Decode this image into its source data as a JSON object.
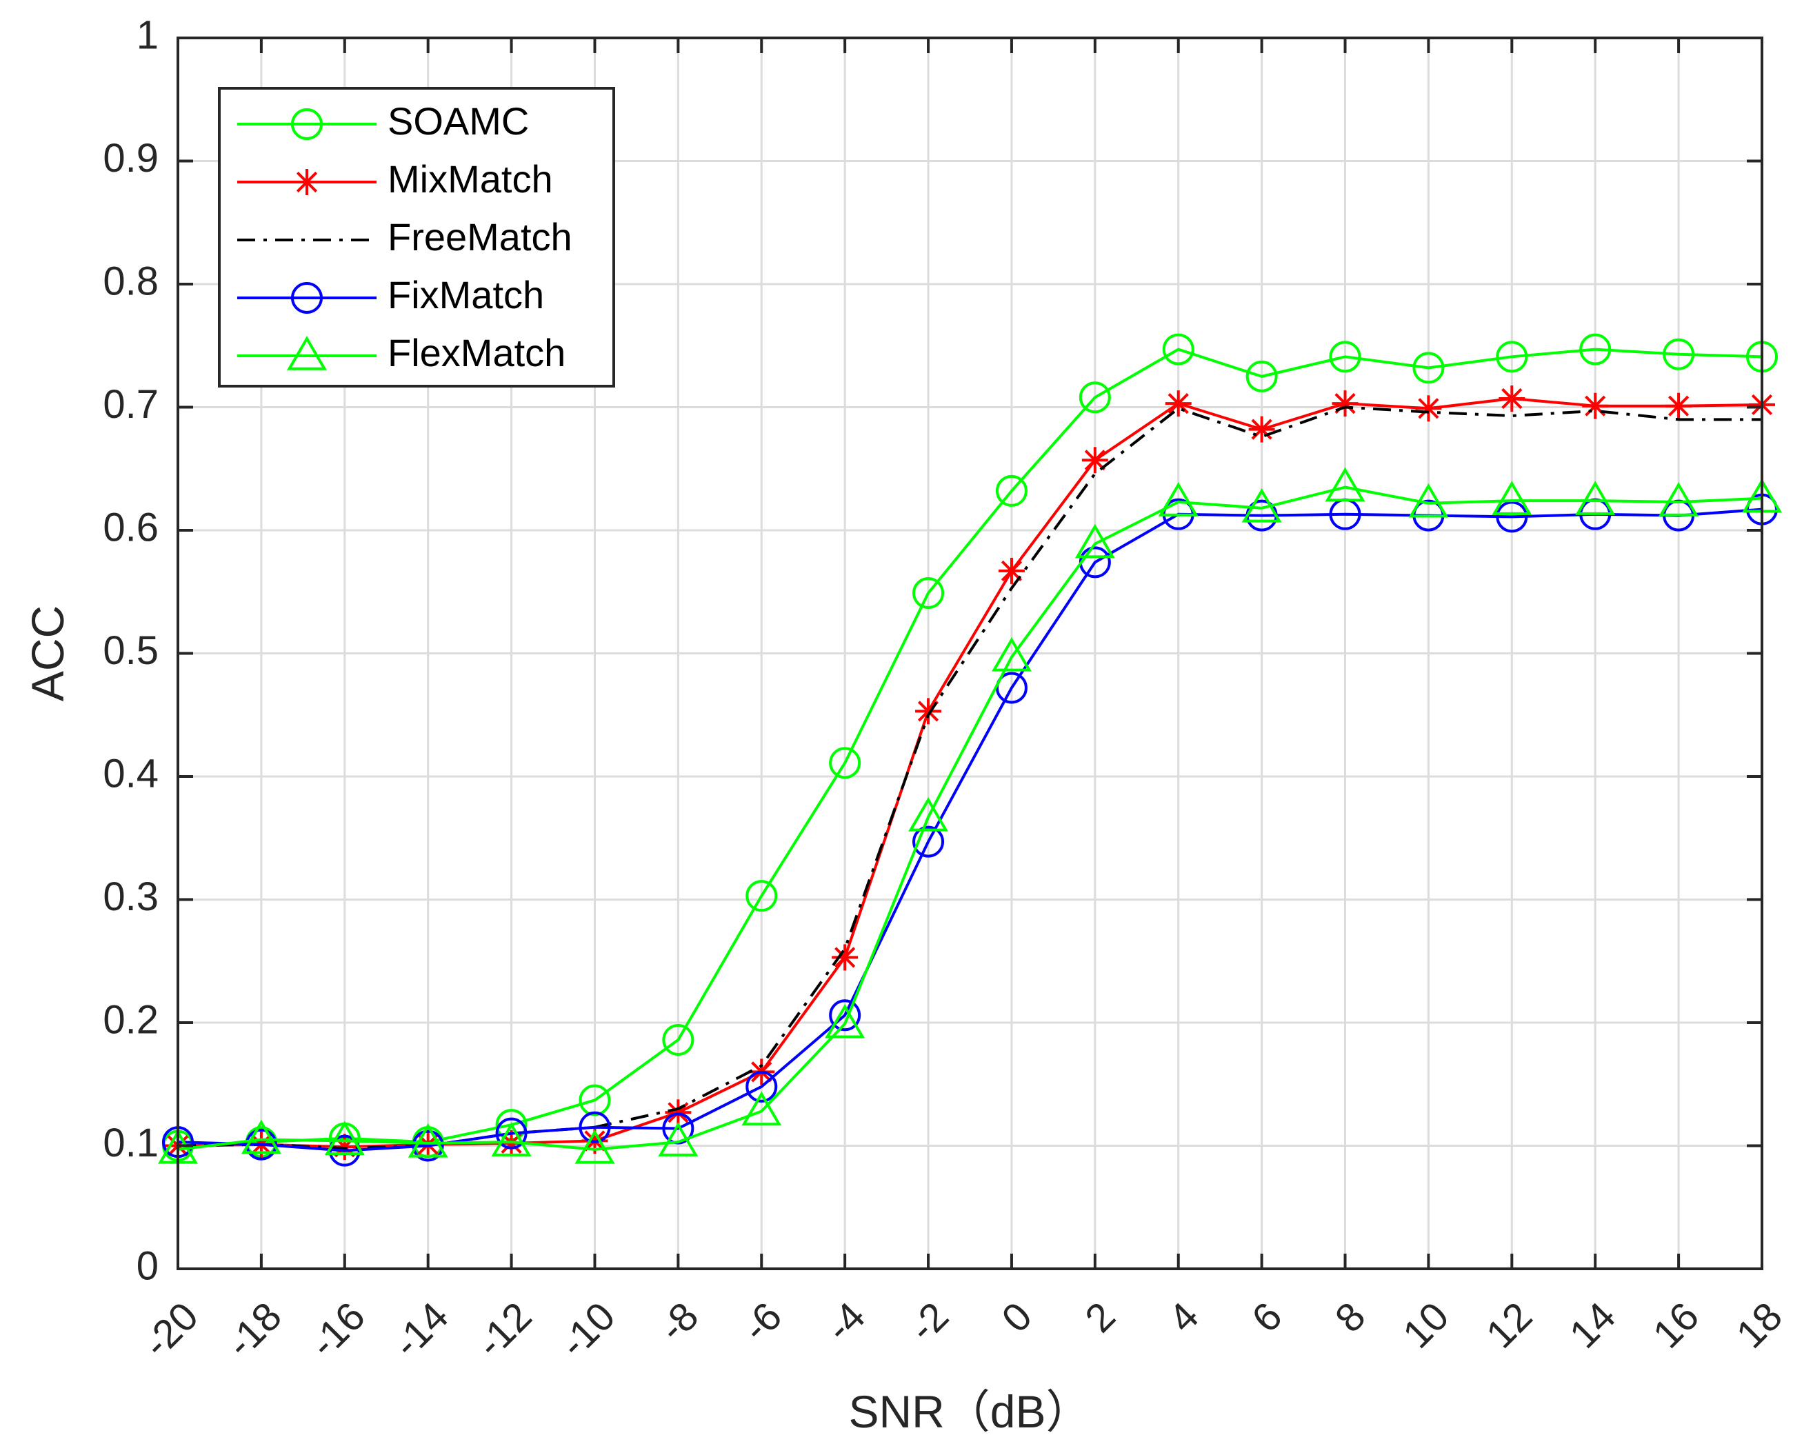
{
  "chart_data": {
    "type": "line",
    "title": "",
    "xlabel": "SNR（dB）",
    "ylabel": "ACC",
    "x": [
      -20,
      -18,
      -16,
      -14,
      -12,
      -10,
      -8,
      -6,
      -4,
      -2,
      0,
      2,
      4,
      6,
      8,
      10,
      12,
      14,
      16,
      18
    ],
    "x_tick_labels": [
      "-20",
      "-18",
      "-16",
      "-14",
      "-12",
      "-10",
      "-8",
      "-6",
      "-4",
      "-2",
      "0",
      "2",
      "4",
      "6",
      "8",
      "10",
      "12",
      "14",
      "16",
      "18"
    ],
    "xlim": [
      -20,
      18
    ],
    "ylim": [
      0,
      1
    ],
    "y_ticks": [
      0,
      0.1,
      0.2,
      0.3,
      0.4,
      0.5,
      0.6,
      0.7,
      0.8,
      0.9,
      1
    ],
    "y_tick_labels": [
      "0",
      "0.1",
      "0.2",
      "0.3",
      "0.4",
      "0.5",
      "0.6",
      "0.7",
      "0.8",
      "0.9",
      "1"
    ],
    "grid": true,
    "legend_position": "top-left",
    "series": [
      {
        "name": "SOAMC",
        "color": "#00ff00",
        "line_style": "solid",
        "marker": "circle",
        "values": [
          0.1,
          0.103,
          0.106,
          0.103,
          0.117,
          0.137,
          0.186,
          0.303,
          0.411,
          0.549,
          0.632,
          0.708,
          0.747,
          0.725,
          0.741,
          0.732,
          0.741,
          0.747,
          0.743,
          0.741
        ]
      },
      {
        "name": "MixMatch",
        "color": "#ff0000",
        "line_style": "solid",
        "marker": "asterisk",
        "values": [
          0.1,
          0.101,
          0.099,
          0.101,
          0.102,
          0.104,
          0.127,
          0.16,
          0.253,
          0.453,
          0.567,
          0.657,
          0.703,
          0.682,
          0.703,
          0.699,
          0.707,
          0.701,
          0.701,
          0.702
        ]
      },
      {
        "name": "FreeMatch",
        "color": "#000000",
        "line_style": "dashdot",
        "marker": "none",
        "values": [
          0.1,
          0.101,
          0.098,
          0.1,
          0.11,
          0.115,
          0.13,
          0.165,
          0.26,
          0.45,
          0.553,
          0.646,
          0.699,
          0.676,
          0.7,
          0.696,
          0.693,
          0.697,
          0.69,
          0.69
        ]
      },
      {
        "name": "FixMatch",
        "color": "#0000ff",
        "line_style": "solid",
        "marker": "circle",
        "values": [
          0.103,
          0.101,
          0.096,
          0.1,
          0.11,
          0.115,
          0.114,
          0.148,
          0.206,
          0.347,
          0.472,
          0.574,
          0.613,
          0.612,
          0.613,
          0.612,
          0.611,
          0.613,
          0.612,
          0.617
        ]
      },
      {
        "name": "FlexMatch",
        "color": "#00ff00",
        "line_style": "solid",
        "marker": "triangle",
        "values": [
          0.097,
          0.105,
          0.104,
          0.102,
          0.103,
          0.097,
          0.103,
          0.128,
          0.199,
          0.367,
          0.497,
          0.589,
          0.623,
          0.618,
          0.635,
          0.622,
          0.624,
          0.624,
          0.623,
          0.626
        ]
      }
    ]
  }
}
